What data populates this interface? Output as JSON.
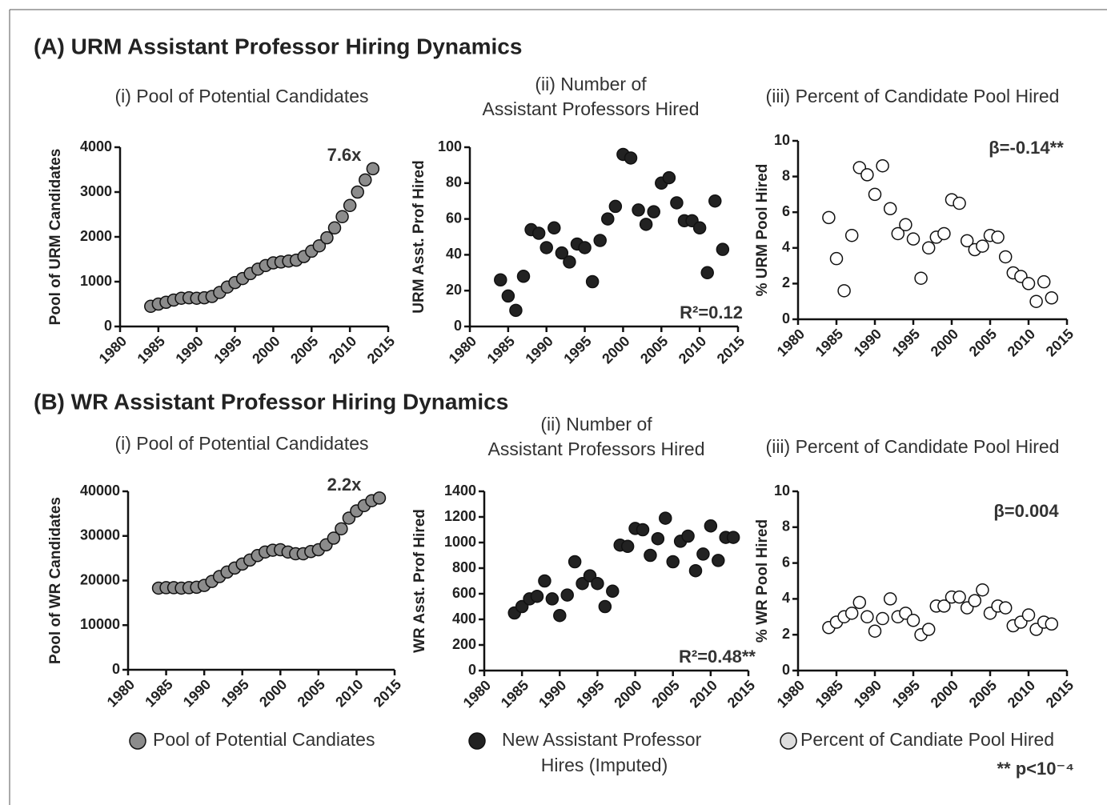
{
  "panels": [
    "(A) URM Assistant Professor Hiring Dynamics",
    "(B) WR Assistant Professor Hiring Dynamics"
  ],
  "legend": [
    {
      "label": [
        "Pool of Potential Candiates"
      ],
      "color": "#8c8c8c"
    },
    {
      "label": [
        "New Assistant Professor",
        "Hires (Imputed)"
      ],
      "color": "#222222"
    },
    {
      "label": [
        "Percent of Candiate Pool Hired"
      ],
      "color": "#dddddd"
    }
  ],
  "footnote": "** p<10⁻⁴",
  "chart_data": [
    {
      "type": "scatter",
      "title": [
        "(i) Pool of Potential Candidates"
      ],
      "ylabel": "Pool of URM Candidates",
      "annotation": "7.6x",
      "color": "#8c8c8c",
      "x": [
        1984,
        1985,
        1986,
        1987,
        1988,
        1989,
        1990,
        1991,
        1992,
        1993,
        1994,
        1995,
        1996,
        1997,
        1998,
        1999,
        2000,
        2001,
        2002,
        2003,
        2004,
        2005,
        2006,
        2007,
        2008,
        2009,
        2010,
        2011,
        2012,
        2013
      ],
      "values": [
        450,
        500,
        540,
        590,
        630,
        640,
        630,
        640,
        670,
        760,
        880,
        980,
        1070,
        1180,
        1280,
        1360,
        1420,
        1440,
        1460,
        1480,
        1560,
        1680,
        1800,
        1980,
        2200,
        2450,
        2700,
        3000,
        3270,
        3520
      ],
      "xlim": [
        1980,
        2015
      ],
      "xticks": [
        1980,
        1985,
        1990,
        1995,
        2000,
        2005,
        2010,
        2015
      ],
      "ylim": [
        0,
        4000
      ],
      "yticks": [
        0,
        1000,
        2000,
        3000,
        4000
      ]
    },
    {
      "type": "scatter",
      "title": [
        "(ii) Number of",
        "Assistant Professors Hired"
      ],
      "ylabel": "URM Asst. Prof Hired",
      "annotation": "R²=0.12",
      "color": "#222222",
      "x": [
        1984,
        1985,
        1986,
        1987,
        1988,
        1989,
        1990,
        1991,
        1992,
        1993,
        1994,
        1995,
        1996,
        1997,
        1998,
        1999,
        2000,
        2001,
        2002,
        2003,
        2004,
        2005,
        2006,
        2007,
        2008,
        2009,
        2010,
        2011,
        2012,
        2013
      ],
      "values": [
        26,
        17,
        9,
        28,
        54,
        52,
        44,
        55,
        41,
        36,
        46,
        44,
        25,
        48,
        60,
        67,
        96,
        94,
        65,
        57,
        64,
        80,
        83,
        69,
        59,
        59,
        55,
        30,
        70,
        43
      ],
      "xlim": [
        1980,
        2015
      ],
      "xticks": [
        1980,
        1985,
        1990,
        1995,
        2000,
        2005,
        2010,
        2015
      ],
      "ylim": [
        0,
        100
      ],
      "yticks": [
        0,
        20,
        40,
        60,
        80,
        100
      ]
    },
    {
      "type": "scatter",
      "title": [
        "(iii) Percent of Candidate Pool Hired"
      ],
      "ylabel": "% URM Pool Hired",
      "annotation": "β=-0.14**",
      "color": "#ffffff",
      "x": [
        1984,
        1985,
        1986,
        1987,
        1988,
        1989,
        1990,
        1991,
        1992,
        1993,
        1994,
        1995,
        1996,
        1997,
        1998,
        1999,
        2000,
        2001,
        2002,
        2003,
        2004,
        2005,
        2006,
        2007,
        2008,
        2009,
        2010,
        2011,
        2012,
        2013
      ],
      "values": [
        5.7,
        3.4,
        1.6,
        4.7,
        8.5,
        8.1,
        7.0,
        8.6,
        6.2,
        4.8,
        5.3,
        4.5,
        2.3,
        4.0,
        4.6,
        4.8,
        6.7,
        6.5,
        4.4,
        3.9,
        4.1,
        4.7,
        4.6,
        3.5,
        2.6,
        2.4,
        2.0,
        1.0,
        2.1,
        1.2
      ],
      "xlim": [
        1980,
        2015
      ],
      "xticks": [
        1980,
        1985,
        1990,
        1995,
        2000,
        2005,
        2010,
        2015
      ],
      "ylim": [
        0,
        10
      ],
      "yticks": [
        0,
        2,
        4,
        6,
        8,
        10
      ]
    },
    {
      "type": "scatter",
      "title": [
        "(i) Pool of Potential Candidates"
      ],
      "ylabel": "Pool of WR Candidates",
      "annotation": "2.2x",
      "color": "#8c8c8c",
      "x": [
        1984,
        1985,
        1986,
        1987,
        1988,
        1989,
        1990,
        1991,
        1992,
        1993,
        1994,
        1995,
        1996,
        1997,
        1998,
        1999,
        2000,
        2001,
        2002,
        2003,
        2004,
        2005,
        2006,
        2007,
        2008,
        2009,
        2010,
        2011,
        2012,
        2013
      ],
      "values": [
        18300,
        18400,
        18400,
        18300,
        18400,
        18500,
        18900,
        19800,
        20900,
        21900,
        22800,
        23700,
        24600,
        25600,
        26400,
        26800,
        26900,
        26400,
        26000,
        26000,
        26500,
        26900,
        28000,
        29500,
        31600,
        34000,
        35600,
        36800,
        37900,
        38500
      ],
      "xlim": [
        1980,
        2015
      ],
      "xticks": [
        1980,
        1985,
        1990,
        1995,
        2000,
        2005,
        2010,
        2015
      ],
      "ylim": [
        0,
        40000
      ],
      "yticks": [
        0,
        10000,
        20000,
        30000,
        40000
      ]
    },
    {
      "type": "scatter",
      "title": [
        "(ii) Number of",
        "Assistant Professors Hired"
      ],
      "ylabel": "WR Asst. Prof Hired",
      "annotation": "R²=0.48**",
      "color": "#222222",
      "x": [
        1984,
        1985,
        1986,
        1987,
        1988,
        1989,
        1990,
        1991,
        1992,
        1993,
        1994,
        1995,
        1996,
        1997,
        1998,
        1999,
        2000,
        2001,
        2002,
        2003,
        2004,
        2005,
        2006,
        2007,
        2008,
        2009,
        2010,
        2011,
        2012,
        2013
      ],
      "values": [
        450,
        500,
        560,
        580,
        700,
        560,
        430,
        590,
        850,
        680,
        740,
        680,
        500,
        620,
        980,
        970,
        1110,
        1100,
        900,
        1030,
        1190,
        850,
        1010,
        1050,
        780,
        910,
        1130,
        860,
        1040,
        1040
      ],
      "xlim": [
        1980,
        2015
      ],
      "xticks": [
        1980,
        1985,
        1990,
        1995,
        2000,
        2005,
        2010,
        2015
      ],
      "ylim": [
        0,
        1400
      ],
      "yticks": [
        0,
        200,
        400,
        600,
        800,
        1000,
        1200,
        1400
      ]
    },
    {
      "type": "scatter",
      "title": [
        "(iii) Percent of Candidate Pool Hired"
      ],
      "ylabel": "% WR Pool Hired",
      "annotation": "β=0.004",
      "color": "#ffffff",
      "x": [
        1984,
        1985,
        1986,
        1987,
        1988,
        1989,
        1990,
        1991,
        1992,
        1993,
        1994,
        1995,
        1996,
        1997,
        1998,
        1999,
        2000,
        2001,
        2002,
        2003,
        2004,
        2005,
        2006,
        2007,
        2008,
        2009,
        2010,
        2011,
        2012,
        2013
      ],
      "values": [
        2.4,
        2.7,
        3.0,
        3.2,
        3.8,
        3.0,
        2.2,
        2.9,
        4.0,
        3.0,
        3.2,
        2.8,
        2.0,
        2.3,
        3.6,
        3.6,
        4.1,
        4.1,
        3.5,
        3.9,
        4.5,
        3.2,
        3.6,
        3.5,
        2.5,
        2.7,
        3.1,
        2.3,
        2.7,
        2.6
      ],
      "xlim": [
        1980,
        2015
      ],
      "xticks": [
        1980,
        1985,
        1990,
        1995,
        2000,
        2005,
        2010,
        2015
      ],
      "ylim": [
        0,
        10
      ],
      "yticks": [
        0,
        2,
        4,
        6,
        8,
        10
      ]
    }
  ]
}
